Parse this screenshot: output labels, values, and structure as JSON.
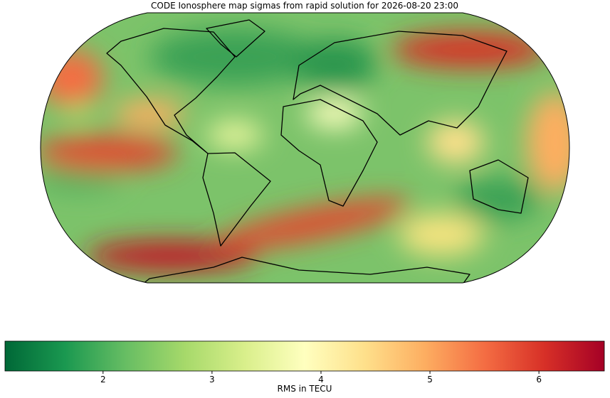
{
  "chart_data": {
    "type": "map",
    "title": "CODE Ionosphere map sigmas from rapid solution for 2026-08-20 23:00",
    "colorbar": {
      "label": "RMS in TECU",
      "lim": [
        1.1,
        6.6
      ],
      "ticks": [
        2,
        3,
        4,
        5,
        6
      ],
      "colors": [
        "#006837",
        "#1a9850",
        "#66bd63",
        "#a6d96a",
        "#d9ef8b",
        "#ffffbf",
        "#fee08b",
        "#fdae61",
        "#f46d43",
        "#d73027",
        "#a50026"
      ]
    }
  }
}
